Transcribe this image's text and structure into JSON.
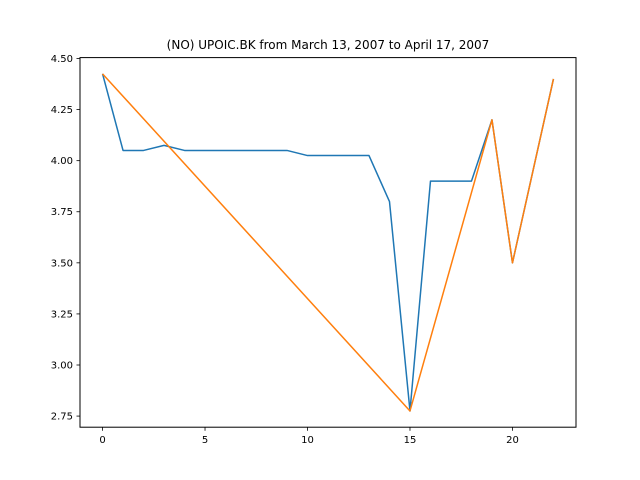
{
  "chart_data": {
    "type": "line",
    "title": "(NO) UPOIC.BK from March 13, 2007 to April 17, 2007",
    "xlabel": "",
    "ylabel": "",
    "xlim": [
      -1.1,
      23.1
    ],
    "ylim": [
      2.6956,
      4.5044
    ],
    "xticks": [
      0,
      5,
      10,
      15,
      20
    ],
    "yticks": [
      2.75,
      3.0,
      3.25,
      3.5,
      3.75,
      4.0,
      4.25,
      4.5
    ],
    "ytick_labels": [
      "2.75",
      "3.00",
      "3.25",
      "3.50",
      "3.75",
      "4.00",
      "4.25",
      "4.50"
    ],
    "grid": false,
    "series": [
      {
        "color": "#1f77b4",
        "points": [
          [
            0,
            4.425
          ],
          [
            1,
            4.05
          ],
          [
            2,
            4.05
          ],
          [
            3,
            4.075
          ],
          [
            4,
            4.05
          ],
          [
            5,
            4.05
          ],
          [
            6,
            4.05
          ],
          [
            7,
            4.05
          ],
          [
            8,
            4.05
          ],
          [
            9,
            4.05
          ],
          [
            10,
            4.025
          ],
          [
            11,
            4.025
          ],
          [
            12,
            4.025
          ],
          [
            13,
            4.025
          ],
          [
            14,
            3.8
          ],
          [
            15,
            2.775
          ],
          [
            16,
            3.9
          ],
          [
            17,
            3.9
          ],
          [
            18,
            3.9
          ],
          [
            19,
            4.2
          ],
          [
            20,
            3.5
          ],
          [
            21,
            3.95
          ],
          [
            22,
            4.4
          ]
        ]
      },
      {
        "color": "#ff7f0e",
        "points": [
          [
            0,
            4.425
          ],
          [
            15,
            2.775
          ],
          [
            19,
            4.2
          ],
          [
            20,
            3.5
          ],
          [
            22,
            4.4
          ]
        ]
      }
    ]
  }
}
